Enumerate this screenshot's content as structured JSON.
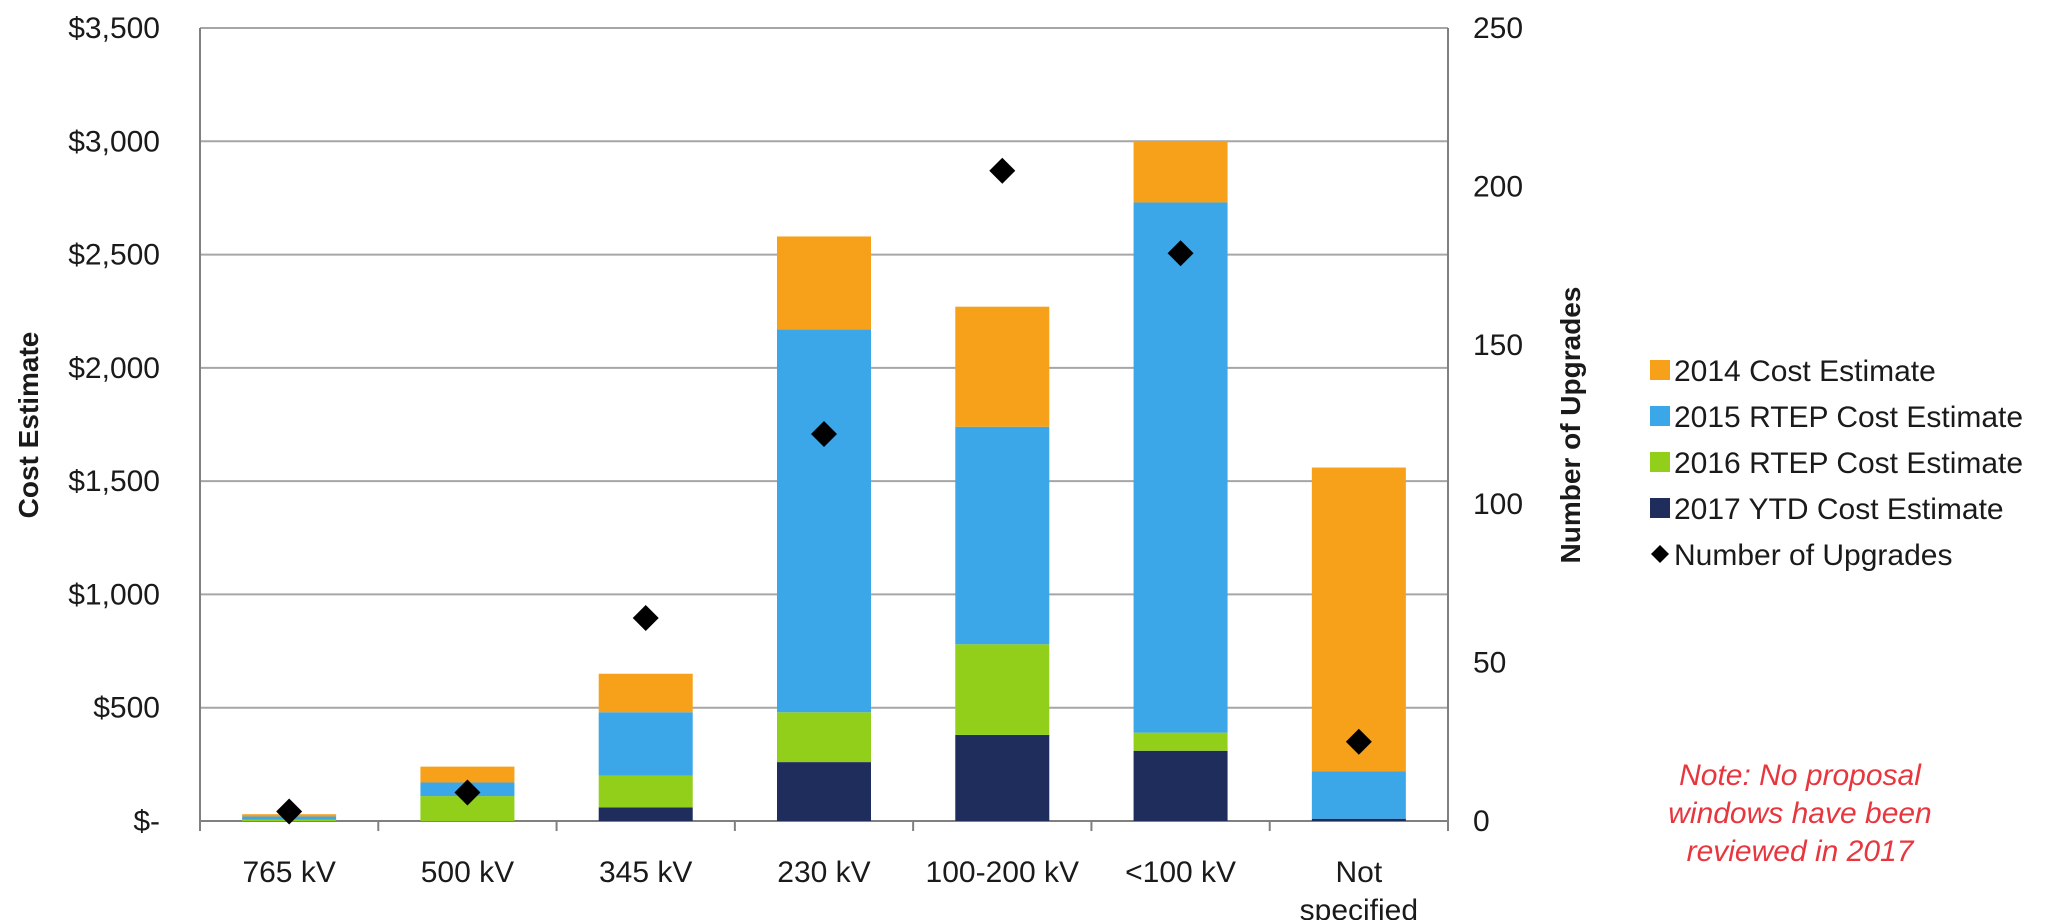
{
  "chart_data": {
    "type": "bar",
    "stacked": true,
    "categories": [
      [
        "765 kV"
      ],
      [
        "500 kV"
      ],
      [
        "345 kV"
      ],
      [
        "230 kV"
      ],
      [
        "100-200 kV"
      ],
      [
        "<100 kV"
      ],
      [
        "Not",
        "specified"
      ]
    ],
    "series": [
      {
        "name": "2017 YTD Cost Estimate",
        "color": "#1f2d5c",
        "values": [
          0,
          0,
          60,
          260,
          380,
          310,
          10
        ]
      },
      {
        "name": "2016 RTEP Cost Estimate",
        "color": "#92cf1a",
        "values": [
          5,
          110,
          140,
          220,
          400,
          80,
          0
        ]
      },
      {
        "name": "2015 RTEP Cost Estimate",
        "color": "#3ba7e8",
        "values": [
          15,
          60,
          280,
          1690,
          960,
          2340,
          210
        ]
      },
      {
        "name": "2014 Cost Estimate",
        "color": "#f7a11a",
        "values": [
          10,
          70,
          170,
          410,
          530,
          270,
          1340
        ]
      }
    ],
    "points": {
      "name": "Number of Upgrades",
      "marker": "diamond",
      "color": "#000000",
      "values": [
        3,
        9,
        64,
        122,
        205,
        179,
        25
      ]
    },
    "ylabel": "Cost Estimate",
    "y2label": "Number of Upgrades",
    "ylim": [
      0,
      3500
    ],
    "y2lim": [
      0,
      250
    ],
    "yticks": [
      0,
      500,
      1000,
      1500,
      2000,
      2500,
      3000,
      3500
    ],
    "ytick_labels": [
      "$-",
      "$500",
      "$1,000",
      "$1,500",
      "$2,000",
      "$2,500",
      "$3,000",
      "$3,500"
    ],
    "y2ticks": [
      0,
      50,
      100,
      150,
      200,
      250
    ],
    "y2tick_labels": [
      "0",
      "50",
      "100",
      "150",
      "200",
      "250"
    ],
    "grid": true,
    "legend_position": "right",
    "legend": [
      {
        "label": "2014 Cost Estimate",
        "color": "#f7a11a",
        "marker": "square"
      },
      {
        "label": "2015 RTEP Cost Estimate",
        "color": "#3ba7e8",
        "marker": "square"
      },
      {
        "label": "2016 RTEP Cost Estimate",
        "color": "#92cf1a",
        "marker": "square"
      },
      {
        "label": "2017 YTD Cost Estimate",
        "color": "#1f2d5c",
        "marker": "square"
      },
      {
        "label": "Number of Upgrades",
        "color": "#000000",
        "marker": "diamond"
      }
    ],
    "note": [
      "Note: No proposal",
      "windows have been",
      "reviewed in 2017"
    ]
  }
}
